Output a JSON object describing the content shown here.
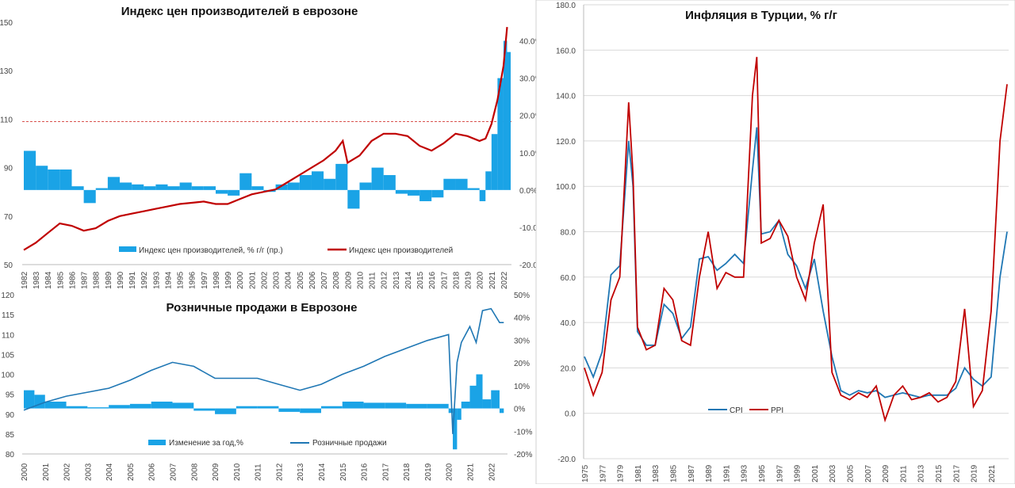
{
  "chart_data": [
    {
      "type": "bar+line",
      "title": "Индекс цен производителей в еврозоне",
      "x": [
        "1982",
        "1983",
        "1984",
        "1985",
        "1986",
        "1987",
        "1988",
        "1989",
        "1990",
        "1991",
        "1992",
        "1993",
        "1994",
        "1995",
        "1996",
        "1997",
        "1998",
        "1999",
        "2000",
        "2001",
        "2002",
        "2003",
        "2004",
        "2005",
        "2006",
        "2007",
        "2008",
        "2009",
        "2010",
        "2011",
        "2012",
        "2013",
        "2014",
        "2015",
        "2016",
        "2017",
        "2018",
        "2019",
        "2020",
        "2021",
        "2022"
      ],
      "ylim_left": [
        50,
        150
      ],
      "yticks_left": [
        50,
        70,
        90,
        110,
        130,
        150
      ],
      "ylim_right": [
        -20,
        45
      ],
      "yticks_right": [
        "-20.0",
        "-10.0",
        "0.0%",
        "10.0%",
        "20.0%",
        "30.0%",
        "40.0%"
      ],
      "reference_line": 109,
      "series": [
        {
          "name": "Индекс цен производителей, % г/г (пр.)",
          "axis": "right",
          "type": "bar",
          "color": "#1aa3e6",
          "x": [
            1982,
            1983,
            1984,
            1985,
            1986,
            1987,
            1988,
            1989,
            1990,
            1991,
            1992,
            1993,
            1994,
            1995,
            1996,
            1997,
            1998,
            1999,
            2000,
            2001,
            2002,
            2003,
            2004,
            2005,
            2006,
            2007,
            2008,
            2009,
            2010,
            2011,
            2012,
            2013,
            2014,
            2015,
            2016,
            2017,
            2018,
            2019,
            2020,
            2020.5,
            2021,
            2021.5,
            2022,
            2022.3
          ],
          "values": [
            10.5,
            6.5,
            5.5,
            5.5,
            1,
            -3.5,
            0.5,
            3.5,
            2,
            1.5,
            1,
            1.5,
            1,
            2,
            1,
            1,
            -1,
            -1.5,
            4.5,
            1,
            -0.5,
            1.5,
            2,
            4,
            5,
            3,
            7,
            -5,
            2,
            6,
            4,
            -1,
            -1.5,
            -3,
            -2,
            3,
            3,
            0.5,
            -3,
            5,
            15,
            30,
            40,
            37
          ]
        },
        {
          "name": "Индекс цен производителей",
          "axis": "left",
          "type": "line",
          "color": "#c00000",
          "x": [
            1982,
            1983,
            1984,
            1985,
            1986,
            1987,
            1988,
            1989,
            1990,
            1991,
            1992,
            1993,
            1994,
            1995,
            1996,
            1997,
            1998,
            1999,
            2000,
            2001,
            2002,
            2003,
            2004,
            2005,
            2006,
            2007,
            2008,
            2008.6,
            2009,
            2010,
            2011,
            2012,
            2013,
            2014,
            2015,
            2016,
            2017,
            2018,
            2019,
            2020,
            2020.5,
            2021,
            2021.5,
            2022,
            2022.3
          ],
          "values": [
            56,
            59,
            63,
            67,
            66,
            64,
            65,
            68,
            70,
            71,
            72,
            73,
            74,
            75,
            75.5,
            76,
            75,
            75,
            77,
            79,
            80,
            81,
            84,
            87,
            90,
            93,
            97,
            101,
            92,
            95,
            101,
            104,
            104,
            103,
            99,
            97,
            100,
            104,
            103,
            101,
            102,
            108,
            118,
            132,
            148
          ]
        }
      ]
    },
    {
      "type": "bar+line",
      "title": "Розничные продажи в Еврозоне",
      "x": [
        "2000",
        "2001",
        "2002",
        "2003",
        "2004",
        "2005",
        "2006",
        "2007",
        "2008",
        "2009",
        "2010",
        "2011",
        "2012",
        "2013",
        "2014",
        "2015",
        "2016",
        "2017",
        "2018",
        "2019",
        "2020",
        "2021",
        "2022"
      ],
      "ylim_left": [
        80,
        120
      ],
      "yticks_left": [
        80,
        85,
        90,
        95,
        100,
        105,
        110,
        115,
        120
      ],
      "ylim_right": [
        -20,
        50
      ],
      "yticks_right": [
        "-20%",
        "-10%",
        "0%",
        "10%",
        "20%",
        "30%",
        "40%",
        "50%"
      ],
      "series": [
        {
          "name": "Изменение за год,%",
          "axis": "right",
          "type": "bar",
          "color": "#1aa3e6",
          "x": [
            2000,
            2000.5,
            2001,
            2002,
            2003,
            2004,
            2005,
            2006,
            2007,
            2008,
            2009,
            2010,
            2011,
            2012,
            2013,
            2014,
            2015,
            2016,
            2017,
            2018,
            2019,
            2020,
            2020.2,
            2020.4,
            2020.6,
            2021,
            2021.3,
            2021.6,
            2022,
            2022.4
          ],
          "values": [
            8,
            6,
            3,
            1,
            0.5,
            1.5,
            2,
            3,
            2.5,
            -1,
            -2.5,
            1,
            1,
            -1.5,
            -2,
            1,
            3,
            2.5,
            2.5,
            2,
            2,
            -2,
            -18,
            -5,
            3,
            10,
            15,
            4,
            8,
            -2
          ]
        },
        {
          "name": "Розничные продажи",
          "axis": "left",
          "type": "line",
          "color": "#1f77b4",
          "x": [
            2000,
            2001,
            2002,
            2003,
            2004,
            2005,
            2006,
            2007,
            2008,
            2009,
            2010,
            2011,
            2012,
            2013,
            2014,
            2015,
            2016,
            2017,
            2018,
            2019,
            2020,
            2020.2,
            2020.4,
            2020.6,
            2021,
            2021.3,
            2021.6,
            2022,
            2022.4,
            2022.6
          ],
          "values": [
            91,
            93,
            94.5,
            95.5,
            96.5,
            98.5,
            101,
            103,
            102,
            99,
            99,
            99,
            97.5,
            96,
            97.5,
            100,
            102,
            104.5,
            106.5,
            108.5,
            110,
            85,
            103,
            108,
            112,
            108,
            116,
            116.5,
            113,
            113
          ]
        }
      ]
    },
    {
      "type": "line",
      "title": "Инфляция в Турции, % г/г",
      "x": [
        "1975",
        "1977",
        "1979",
        "1981",
        "1983",
        "1985",
        "1987",
        "1989",
        "1991",
        "1993",
        "1995",
        "1997",
        "1999",
        "2001",
        "2003",
        "2005",
        "2007",
        "2009",
        "2011",
        "2013",
        "2015",
        "2017",
        "2019",
        "2021"
      ],
      "ylim": [
        -20,
        180
      ],
      "yticks": [
        "-20.0",
        "0.0",
        "20.0",
        "40.0",
        "60.0",
        "80.0",
        "100.0",
        "120.0",
        "140.0",
        "160.0",
        "180.0"
      ],
      "series": [
        {
          "name": "CPI",
          "color": "#1f77b4",
          "x": [
            1975,
            1976,
            1977,
            1978,
            1979,
            1980,
            1980.5,
            1981,
            1982,
            1983,
            1984,
            1985,
            1986,
            1987,
            1988,
            1989,
            1990,
            1991,
            1992,
            1993,
            1994,
            1994.5,
            1995,
            1996,
            1997,
            1998,
            1999,
            2000,
            2001,
            2002,
            2003,
            2004,
            2005,
            2006,
            2007,
            2008,
            2009,
            2010,
            2011,
            2012,
            2013,
            2014,
            2015,
            2016,
            2017,
            2018,
            2019,
            2020,
            2021,
            2022,
            2022.8
          ],
          "values": [
            25,
            16,
            27,
            61,
            65,
            120,
            100,
            36,
            30,
            30,
            48,
            44,
            33,
            38,
            68,
            69,
            63,
            66,
            70,
            66,
            107,
            126,
            79,
            80,
            85,
            70,
            65,
            55,
            68,
            45,
            25,
            10,
            8,
            10,
            9,
            10,
            7,
            8,
            9,
            8,
            7,
            8,
            8,
            8,
            11,
            20,
            15,
            12,
            16,
            60,
            80
          ]
        },
        {
          "name": "PPI",
          "color": "#c00000",
          "x": [
            1975,
            1976,
            1977,
            1978,
            1979,
            1980,
            1980.5,
            1981,
            1982,
            1983,
            1984,
            1985,
            1986,
            1987,
            1988,
            1989,
            1990,
            1991,
            1992,
            1993,
            1994,
            1994.5,
            1995,
            1996,
            1997,
            1998,
            1999,
            2000,
            2001,
            2002,
            2003,
            2004,
            2005,
            2006,
            2007,
            2008,
            2009,
            2010,
            2011,
            2012,
            2013,
            2014,
            2015,
            2016,
            2017,
            2018,
            2019,
            2020,
            2021,
            2022,
            2022.8
          ],
          "values": [
            20,
            8,
            18,
            50,
            60,
            137,
            105,
            38,
            28,
            30,
            55,
            50,
            32,
            30,
            60,
            80,
            55,
            62,
            60,
            60,
            140,
            157,
            75,
            77,
            85,
            78,
            60,
            50,
            75,
            92,
            18,
            8,
            6,
            9,
            7,
            12,
            -3,
            8,
            12,
            6,
            7,
            9,
            5,
            7,
            14,
            46,
            3,
            10,
            45,
            120,
            145
          ]
        }
      ]
    }
  ],
  "charts": [
    {
      "title": "Индекс цен производителей в еврозоне",
      "legend": [
        "Индекс цен производителей, % г/г (пр.)",
        "Индекс цен производителей"
      ]
    },
    {
      "title": "Розничные продажи в Еврозоне",
      "legend": [
        "Изменение за год,%",
        "Розничные продажи"
      ]
    },
    {
      "title": "Инфляция в Турции, % г/г",
      "legend": [
        "CPI",
        "PPI"
      ]
    }
  ],
  "colors": {
    "bar": "#1aa3e6",
    "red_line": "#c00000",
    "blue_line": "#1f77b4",
    "ref_line": "#d9534f"
  }
}
